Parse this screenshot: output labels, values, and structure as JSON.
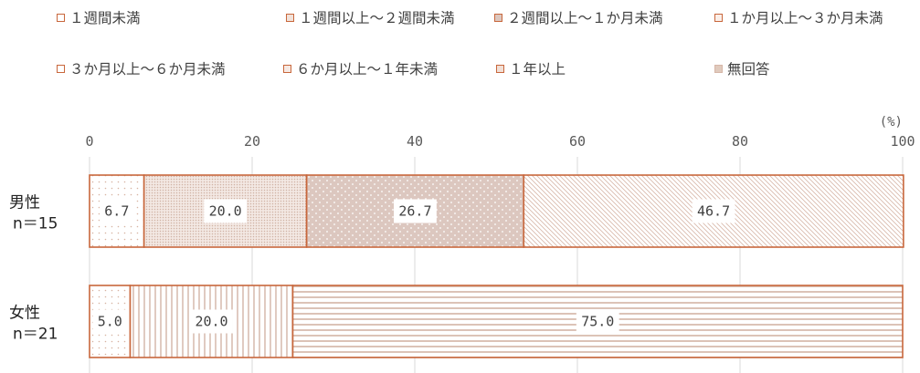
{
  "chart_data": {
    "type": "bar",
    "orientation": "horizontal",
    "stacked": true,
    "unit_label": "(%)",
    "xlim": [
      0,
      100
    ],
    "xticks": [
      "0",
      "20",
      "40",
      "60",
      "80",
      "100"
    ],
    "grid": true,
    "legend_position": "top",
    "categories": [
      {
        "name": "男性",
        "n": "n＝15"
      },
      {
        "name": "女性",
        "n": "n＝21"
      }
    ],
    "series": [
      {
        "name": "１週間未満",
        "pattern": "dots",
        "values": [
          6.7,
          5.0
        ]
      },
      {
        "name": "１週間以上～２週間未満",
        "pattern": "fine-dots",
        "values": [
          20.0,
          0
        ]
      },
      {
        "name": "２週間以上～１か月未満",
        "pattern": "dots-shaded",
        "values": [
          26.7,
          0
        ]
      },
      {
        "name": "１か月以上～３か月未満",
        "pattern": "diagonal",
        "values": [
          46.7,
          0
        ]
      },
      {
        "name": "３か月以上～６か月未満",
        "pattern": "vertical-lines",
        "values": [
          0,
          20.0
        ]
      },
      {
        "name": "６か月以上～１年未満",
        "pattern": "horizontal-lines",
        "values": [
          0,
          75.0
        ]
      },
      {
        "name": "１年以上",
        "pattern": "solid-light",
        "values": [
          0,
          0
        ]
      },
      {
        "name": "無回答",
        "pattern": "grid",
        "values": [
          0,
          0
        ]
      }
    ],
    "data_labels": [
      [
        "6.7",
        "20.0",
        "26.7",
        "46.7",
        "",
        "",
        "",
        ""
      ],
      [
        "5.0",
        "",
        "",
        "",
        "20.0",
        "75.0",
        "",
        ""
      ]
    ]
  },
  "colors": {
    "bar_border": "#c8673c",
    "text": "#404040",
    "grid": "#d9d9d9"
  }
}
